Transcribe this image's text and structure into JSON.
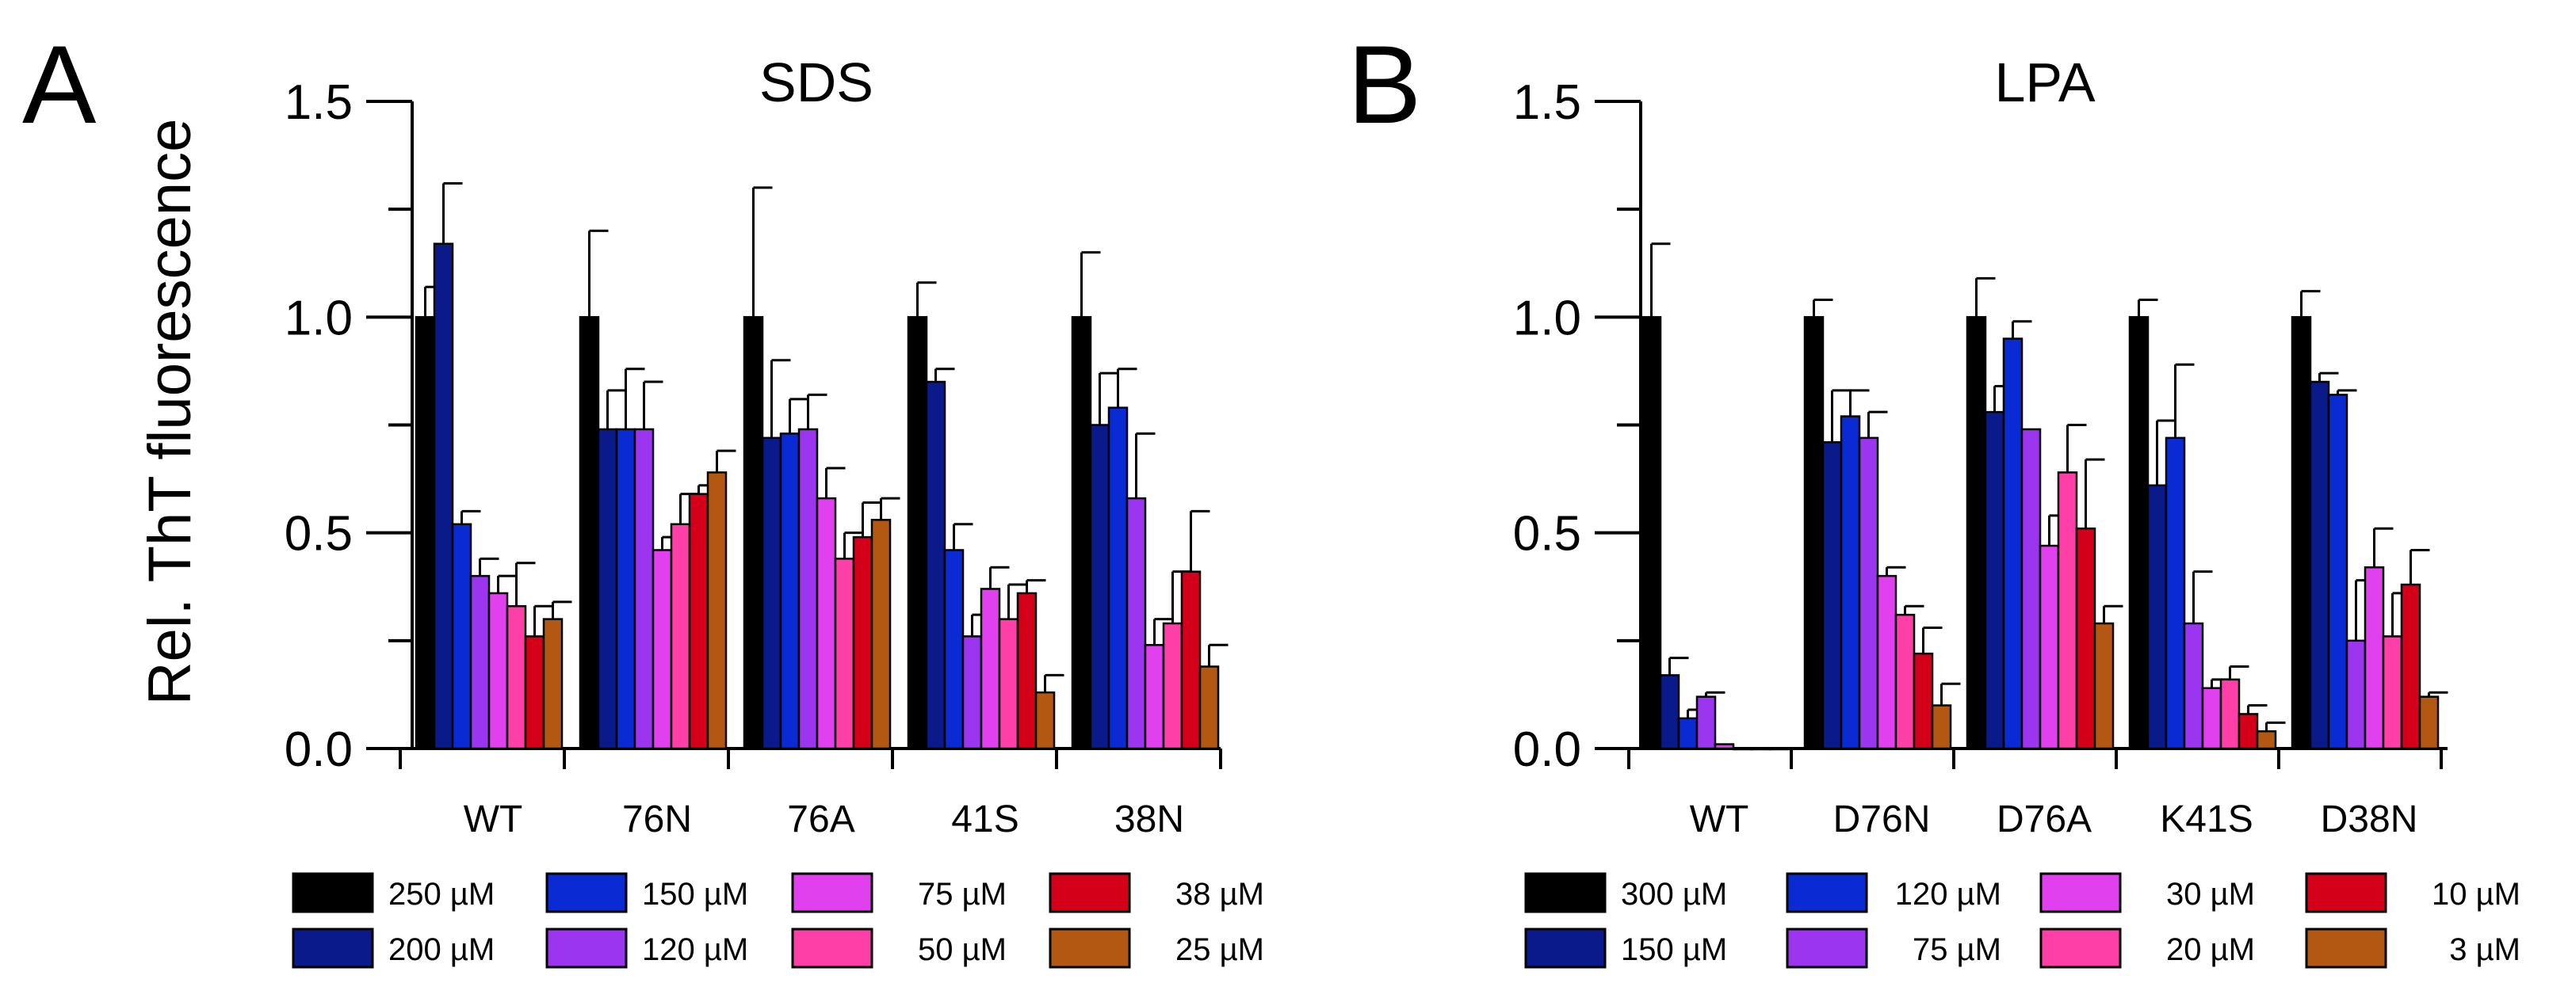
{
  "ylabel": "Rel. ThT fluorescence",
  "chart_data": [
    {
      "type": "bar",
      "panel_label": "A",
      "title": "SDS",
      "ylabel": "Rel. ThT fluorescence",
      "ylim": [
        0,
        1.5
      ],
      "yticks": [
        "0.0",
        "0.5",
        "1.0",
        "1.5"
      ],
      "categories": [
        "WT",
        "76N",
        "76A",
        "41S",
        "38N"
      ],
      "series": [
        {
          "name": "250 µM",
          "color": "#000000",
          "values": [
            1.0,
            1.0,
            1.0,
            1.0,
            1.0
          ],
          "errors": [
            0.07,
            0.2,
            0.3,
            0.08,
            0.15
          ]
        },
        {
          "name": "200 µM",
          "color": "#0b1a8a",
          "values": [
            1.17,
            0.74,
            0.72,
            0.85,
            0.75
          ],
          "errors": [
            0.14,
            0.09,
            0.18,
            0.03,
            0.12
          ]
        },
        {
          "name": "150 µM",
          "color": "#0a2ad4",
          "values": [
            0.52,
            0.74,
            0.73,
            0.46,
            0.79
          ],
          "errors": [
            0.03,
            0.14,
            0.08,
            0.06,
            0.09
          ]
        },
        {
          "name": "120 µM",
          "color": "#9b35f0",
          "values": [
            0.4,
            0.74,
            0.74,
            0.26,
            0.58
          ],
          "errors": [
            0.04,
            0.11,
            0.08,
            0.05,
            0.15
          ]
        },
        {
          "name": "75 µM",
          "color": "#e040ee",
          "values": [
            0.36,
            0.46,
            0.58,
            0.37,
            0.24
          ],
          "errors": [
            0.04,
            0.03,
            0.07,
            0.05,
            0.06
          ]
        },
        {
          "name": "50 µM",
          "color": "#ff3fa8",
          "values": [
            0.33,
            0.52,
            0.44,
            0.3,
            0.29
          ],
          "errors": [
            0.1,
            0.07,
            0.06,
            0.08,
            0.12
          ]
        },
        {
          "name": "38 µM",
          "color": "#d4001a",
          "values": [
            0.26,
            0.59,
            0.49,
            0.36,
            0.41
          ],
          "errors": [
            0.07,
            0.02,
            0.08,
            0.03,
            0.14
          ]
        },
        {
          "name": "25 µM",
          "color": "#b35812",
          "values": [
            0.3,
            0.64,
            0.53,
            0.13,
            0.19
          ],
          "errors": [
            0.04,
            0.05,
            0.05,
            0.04,
            0.05
          ]
        }
      ]
    },
    {
      "type": "bar",
      "panel_label": "B",
      "title": "LPA",
      "ylabel": "",
      "ylim": [
        0,
        1.5
      ],
      "yticks": [
        "0.0",
        "0.5",
        "1.0",
        "1.5"
      ],
      "categories": [
        "WT",
        "D76N",
        "D76A",
        "K41S",
        "D38N"
      ],
      "series": [
        {
          "name": "300 µM",
          "color": "#000000",
          "values": [
            1.0,
            1.0,
            1.0,
            1.0,
            1.0
          ],
          "errors": [
            0.17,
            0.04,
            0.09,
            0.04,
            0.06
          ]
        },
        {
          "name": "150 µM",
          "color": "#0b1a8a",
          "values": [
            0.17,
            0.71,
            0.78,
            0.61,
            0.85
          ],
          "errors": [
            0.04,
            0.12,
            0.06,
            0.15,
            0.02
          ]
        },
        {
          "name": "120 µM",
          "color": "#0a2ad4",
          "values": [
            0.07,
            0.77,
            0.95,
            0.72,
            0.82
          ],
          "errors": [
            0.02,
            0.06,
            0.04,
            0.17,
            0.01
          ]
        },
        {
          "name": "75 µM",
          "color": "#9b35f0",
          "values": [
            0.12,
            0.72,
            0.74,
            0.29,
            0.25
          ],
          "errors": [
            0.01,
            0.06,
            0.0,
            0.12,
            0.14
          ]
        },
        {
          "name": "30 µM",
          "color": "#e040ee",
          "values": [
            0.01,
            0.4,
            0.47,
            0.14,
            0.42
          ],
          "errors": [
            0.0,
            0.02,
            0.07,
            0.02,
            0.09
          ]
        },
        {
          "name": "20 µM",
          "color": "#ff3fa8",
          "values": [
            0.0,
            0.31,
            0.64,
            0.16,
            0.26
          ],
          "errors": [
            0.0,
            0.02,
            0.11,
            0.03,
            0.1
          ]
        },
        {
          "name": "10 µM",
          "color": "#d4001a",
          "values": [
            0.0,
            0.22,
            0.51,
            0.08,
            0.38
          ],
          "errors": [
            0.0,
            0.06,
            0.16,
            0.02,
            0.08
          ]
        },
        {
          "name": "3 µM",
          "color": "#b35812",
          "values": [
            0.0,
            0.1,
            0.29,
            0.04,
            0.12
          ],
          "errors": [
            0.0,
            0.05,
            0.04,
            0.02,
            0.01
          ]
        }
      ]
    }
  ]
}
